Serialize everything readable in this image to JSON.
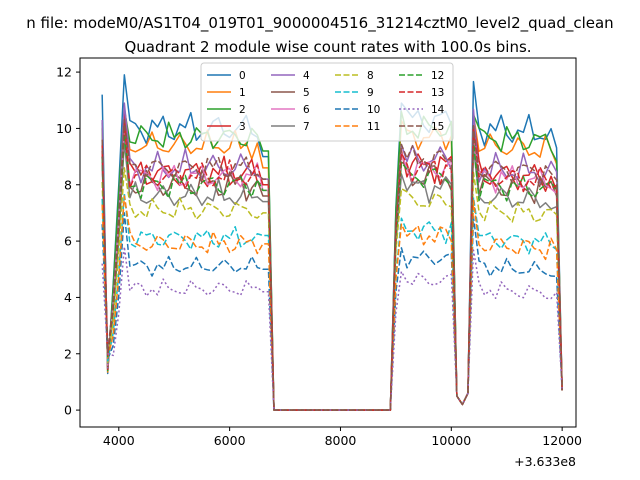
{
  "figure": {
    "suptitle": "n file: modeM0/AS1T04_019T01_9000004516_31214cztM0_level2_quad_clean",
    "title": "Quadrant 2 module wise count rates with 100.0s bins.",
    "offset_label": "+3.633e8"
  },
  "chart_data": {
    "type": "line",
    "title": "Quadrant 2 module wise count rates with 100.0s bins.",
    "xlabel": "",
    "ylabel": "",
    "x_offset": 363300000,
    "xlim": [
      3300,
      12250
    ],
    "ylim": [
      -0.6,
      12.5
    ],
    "x_ticks": [
      4000,
      6000,
      8000,
      10000,
      12000
    ],
    "x_tick_labels": [
      "4000",
      "6000",
      "8000",
      "10000",
      "12000"
    ],
    "y_ticks": [
      0,
      2,
      4,
      6,
      8,
      10,
      12
    ],
    "y_tick_labels": [
      "0",
      "2",
      "4",
      "6",
      "8",
      "10",
      "12"
    ],
    "grid": false,
    "legend": {
      "placement": "top-center",
      "columns": 4
    },
    "segments": [
      {
        "x_start": 3700,
        "x_end": 6700,
        "step": 100
      },
      {
        "x_start": 6800,
        "x_end": 8900,
        "step": 100
      },
      {
        "x_start": 9000,
        "x_end": 10000,
        "step": 100
      },
      {
        "x_start": 10100,
        "x_end": 10200,
        "step": 100
      },
      {
        "x_start": 10300,
        "x_end": 12000,
        "step": 100
      }
    ],
    "series": [
      {
        "name": "0",
        "color": "#1f77b4",
        "dash": "solid",
        "level": 10.0,
        "first": 11.2,
        "peak": 11.9,
        "wiggle": 0.35,
        "left_end": 9.0,
        "right_end": 9.8,
        "seg2_start": 9.6
      },
      {
        "name": "1",
        "color": "#ff7f0e",
        "dash": "solid",
        "level": 9.4,
        "first": 10.0,
        "peak": 10.7,
        "wiggle": 0.3,
        "left_end": 8.6,
        "right_end": 9.2,
        "seg2_start": 9.0
      },
      {
        "name": "2",
        "color": "#2ca02c",
        "dash": "solid",
        "level": 9.7,
        "first": 10.2,
        "peak": 10.7,
        "wiggle": 0.3,
        "left_end": 9.2,
        "right_end": 9.3,
        "seg2_start": 9.4
      },
      {
        "name": "3",
        "color": "#d62728",
        "dash": "solid",
        "level": 8.4,
        "first": 9.2,
        "peak": 10.6,
        "wiggle": 0.35,
        "left_end": 8.0,
        "right_end": 8.2,
        "seg2_start": 8.6
      },
      {
        "name": "4",
        "color": "#9467bd",
        "dash": "solid",
        "level": 8.6,
        "first": 10.3,
        "peak": 10.9,
        "wiggle": 0.35,
        "left_end": 8.2,
        "right_end": 8.9,
        "seg2_start": 8.6
      },
      {
        "name": "5",
        "color": "#8c564b",
        "dash": "solid",
        "level": 8.0,
        "first": 9.0,
        "peak": 10.3,
        "wiggle": 0.35,
        "left_end": 7.6,
        "right_end": 8.0,
        "seg2_start": 8.2
      },
      {
        "name": "6",
        "color": "#e377c2",
        "dash": "solid",
        "level": 8.3,
        "first": 9.0,
        "peak": 9.8,
        "wiggle": 0.3,
        "left_end": 7.8,
        "right_end": 8.1,
        "seg2_start": 8.4
      },
      {
        "name": "7",
        "color": "#7f7f7f",
        "dash": "solid",
        "level": 7.6,
        "first": 8.8,
        "peak": 9.5,
        "wiggle": 0.3,
        "left_end": 7.4,
        "right_end": 7.6,
        "seg2_start": 7.8
      },
      {
        "name": "8",
        "color": "#bcbd22",
        "dash": "dashed",
        "level": 7.1,
        "first": 8.1,
        "peak": 8.6,
        "wiggle": 0.25,
        "left_end": 7.0,
        "right_end": 7.3,
        "seg2_start": 7.5
      },
      {
        "name": "9",
        "color": "#17becf",
        "dash": "dashed",
        "level": 6.1,
        "first": 7.5,
        "peak": 7.7,
        "wiggle": 0.25,
        "left_end": 6.2,
        "right_end": 6.0,
        "seg2_start": 6.4
      },
      {
        "name": "10",
        "color": "#1f77b4",
        "dash": "dashed",
        "level": 5.1,
        "first": 6.6,
        "peak": 7.0,
        "wiggle": 0.2,
        "left_end": 5.0,
        "right_end": 5.0,
        "seg2_start": 5.6
      },
      {
        "name": "11",
        "color": "#ff7f0e",
        "dash": "dashed",
        "level": 5.9,
        "first": 7.3,
        "peak": 7.6,
        "wiggle": 0.25,
        "left_end": 5.9,
        "right_end": 6.0,
        "seg2_start": 6.2
      },
      {
        "name": "12",
        "color": "#2ca02c",
        "dash": "dashed",
        "level": 8.0,
        "first": 9.0,
        "peak": 9.8,
        "wiggle": 0.3,
        "left_end": 7.8,
        "right_end": 8.2,
        "seg2_start": 8.2
      },
      {
        "name": "13",
        "color": "#d62728",
        "dash": "dashed",
        "level": 8.3,
        "first": 9.4,
        "peak": 10.2,
        "wiggle": 0.3,
        "left_end": 8.0,
        "right_end": 8.4,
        "seg2_start": 8.6
      },
      {
        "name": "14",
        "color": "#9467bd",
        "dash": "dotted",
        "level": 4.3,
        "first": 5.2,
        "peak": 5.8,
        "wiggle": 0.2,
        "left_end": 4.2,
        "right_end": 4.4,
        "seg2_start": 4.6
      },
      {
        "name": "15",
        "color": "#8c564b",
        "dash": "dashed",
        "level": 8.6,
        "first": 9.6,
        "peak": 10.3,
        "wiggle": 0.3,
        "left_end": 8.2,
        "right_end": 8.6,
        "seg2_start": 8.8
      }
    ]
  }
}
